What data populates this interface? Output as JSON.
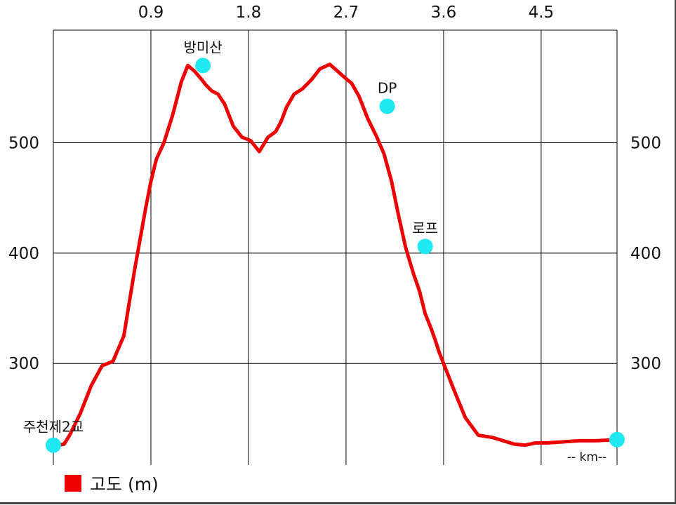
{
  "chart_data": {
    "type": "line",
    "title": "",
    "unit_label": "-- km--",
    "x_ticks": [
      "0.9",
      "1.8",
      "2.7",
      "3.6",
      "4.5"
    ],
    "x_tick_values": [
      0.9,
      1.8,
      2.7,
      3.6,
      4.5
    ],
    "y_ticks_left": [
      "500",
      "400",
      "300"
    ],
    "y_ticks_right": [
      "500",
      "400",
      "300"
    ],
    "y_tick_values": [
      500,
      400,
      300
    ],
    "xlim": [
      0,
      5.2
    ],
    "ylim": [
      208,
      602
    ],
    "grid": true,
    "legend_position": "bottom-left",
    "series": [
      {
        "name": "고도 (m)",
        "color": "#ee0000",
        "x": [
          0.0,
          0.1,
          0.15,
          0.25,
          0.35,
          0.45,
          0.55,
          0.65,
          0.75,
          0.85,
          0.9,
          0.95,
          1.02,
          1.1,
          1.18,
          1.24,
          1.3,
          1.37,
          1.41,
          1.46,
          1.52,
          1.58,
          1.66,
          1.74,
          1.82,
          1.9,
          1.98,
          2.05,
          2.1,
          2.15,
          2.22,
          2.3,
          2.38,
          2.46,
          2.55,
          2.62,
          2.7,
          2.75,
          2.82,
          2.9,
          2.98,
          3.05,
          3.12,
          3.18,
          3.25,
          3.32,
          3.38,
          3.43,
          3.48,
          3.52,
          3.56,
          3.62,
          3.7,
          3.8,
          3.92,
          4.05,
          4.15,
          4.25,
          4.35,
          4.45,
          4.55,
          4.7,
          4.85,
          5.0,
          5.2
        ],
        "y": [
          225,
          227,
          235,
          255,
          280,
          298,
          302,
          325,
          385,
          440,
          465,
          485,
          500,
          525,
          555,
          570,
          565,
          557,
          552,
          547,
          544,
          535,
          515,
          505,
          502,
          492,
          505,
          510,
          519,
          532,
          544,
          549,
          557,
          567,
          571,
          565,
          558,
          554,
          542,
          522,
          506,
          490,
          465,
          436,
          405,
          382,
          365,
          345,
          333,
          322,
          310,
          295,
          275,
          251,
          235,
          233,
          230,
          227,
          226,
          228,
          228,
          229,
          230,
          230,
          231
        ]
      }
    ],
    "waypoints": [
      {
        "label": "주천제2교",
        "x": 0.0,
        "y": 226
      },
      {
        "label": "방미산",
        "x": 1.38,
        "y": 570
      },
      {
        "label": "DP",
        "x": 3.08,
        "y": 533
      },
      {
        "label": "로프",
        "x": 3.43,
        "y": 406
      },
      {
        "label": "",
        "x": 5.2,
        "y": 231
      }
    ],
    "waypoint_color": "#1ee8f0",
    "grid_color": "#000000"
  }
}
